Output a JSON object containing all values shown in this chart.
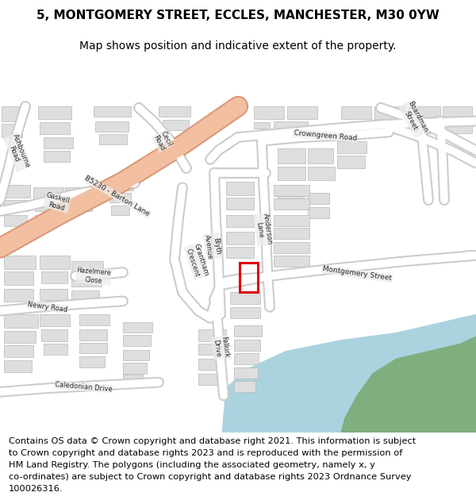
{
  "title_line1": "5, MONTGOMERY STREET, ECCLES, MANCHESTER, M30 0YW",
  "title_line2": "Map shows position and indicative extent of the property.",
  "footer_lines": [
    "Contains OS data © Crown copyright and database right 2021. This information is subject",
    "to Crown copyright and database rights 2023 and is reproduced with the permission of",
    "HM Land Registry. The polygons (including the associated geometry, namely x, y",
    "co-ordinates) are subject to Crown copyright and database rights 2023 Ordnance Survey",
    "100026316."
  ],
  "map_bg": "#eeecea",
  "road_fill": "#ffffff",
  "road_edge": "#cccccc",
  "major_fill": "#f2bfa0",
  "major_edge": "#d9997a",
  "bldg_fill": "#dedede",
  "bldg_edge": "#b8b8b8",
  "water_fill": "#aad3df",
  "green_fill": "#7fae7f",
  "prop_color": "#dd0000",
  "title_fs": 11,
  "sub_fs": 10,
  "foot_fs": 8.2,
  "road_lw": 7,
  "road_edge_lw": 10,
  "major_lw": 16,
  "major_edge_lw": 19
}
